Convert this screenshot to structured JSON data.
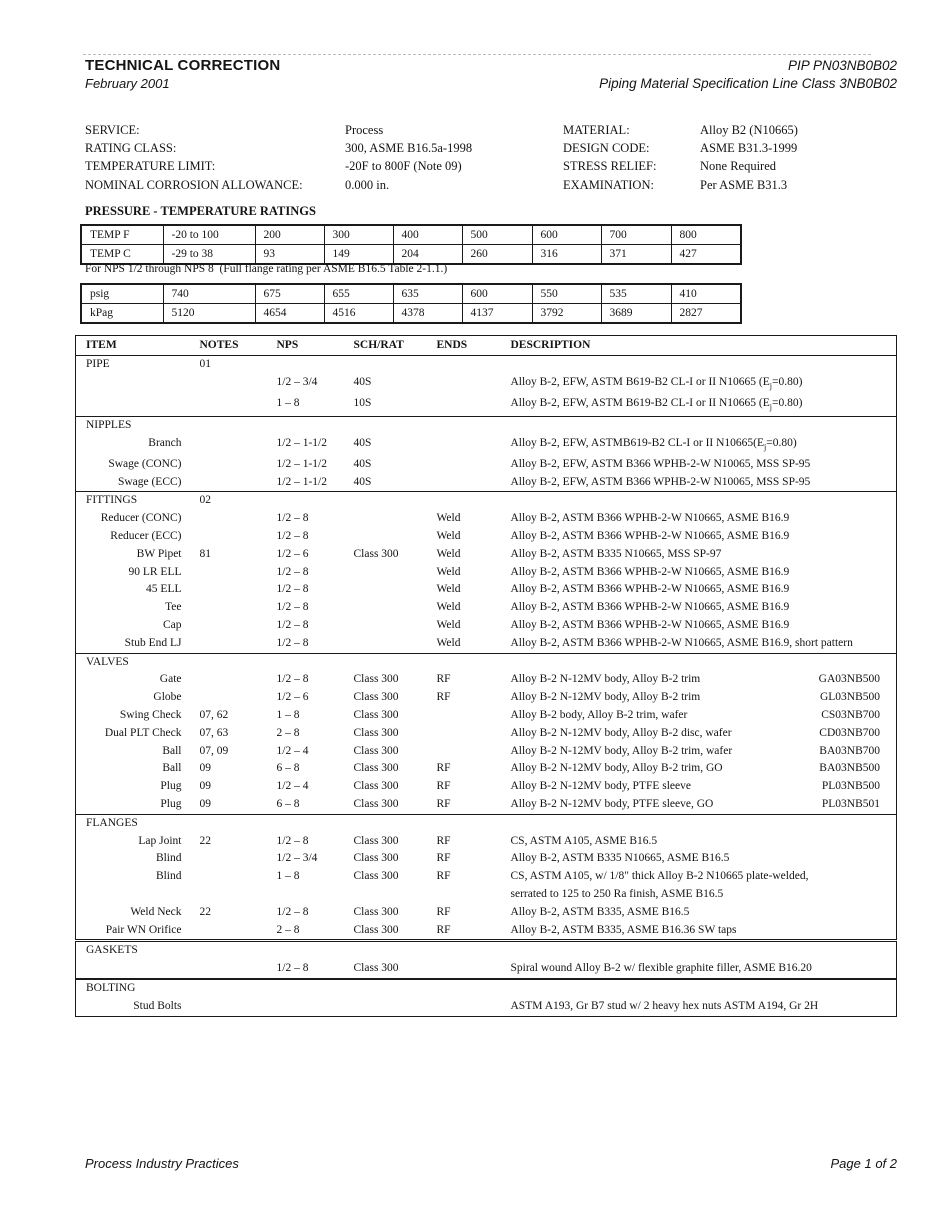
{
  "header": {
    "title": "TECHNICAL CORRECTION",
    "date": "February 2001",
    "doc_number": "PIP PN03NB0B02",
    "doc_subtitle": "Piping Material Specification Line Class 3NB0B02"
  },
  "info": {
    "left": [
      {
        "label": "SERVICE:",
        "value": "Process"
      },
      {
        "label": "RATING CLASS:",
        "value": "300, ASME B16.5a-1998"
      },
      {
        "label": "TEMPERATURE LIMIT:",
        "value": "-20F to 800F (Note 09)"
      },
      {
        "label": "NOMINAL CORROSION ALLOWANCE:",
        "value": "0.000 in."
      }
    ],
    "right": [
      {
        "label": "MATERIAL:",
        "value": "Alloy B2 (N10665)"
      },
      {
        "label": "DESIGN CODE:",
        "value": "ASME B31.3-1999"
      },
      {
        "label": "STRESS RELIEF:",
        "value": "None Required"
      },
      {
        "label": "EXAMINATION:",
        "value": "Per ASME B31.3"
      }
    ]
  },
  "pressure_section": {
    "title": "PRESSURE - TEMPERATURE RATINGS",
    "temp_table": {
      "rows": [
        {
          "label": "TEMP F",
          "values": [
            "-20 to 100",
            "200",
            "300",
            "400",
            "500",
            "600",
            "700",
            "800"
          ]
        },
        {
          "label": "TEMP C",
          "values": [
            "-29 to 38",
            "93",
            "149",
            "204",
            "260",
            "316",
            "371",
            "427"
          ]
        }
      ]
    },
    "note": "For NPS 1/2 through NPS 8  (Full flange rating per ASME B16.5 Table 2-1.1.)",
    "pressure_table": {
      "rows": [
        {
          "label": "psig",
          "values": [
            "740",
            "675",
            "655",
            "635",
            "600",
            "550",
            "535",
            "410"
          ]
        },
        {
          "label": "kPag",
          "values": [
            "5120",
            "4654",
            "4516",
            "4378",
            "4137",
            "3792",
            "3689",
            "2827"
          ]
        }
      ]
    }
  },
  "items_table": {
    "headers": [
      "ITEM",
      "NOTES",
      "NPS",
      "SCH/RAT",
      "ENDS",
      "DESCRIPTION"
    ],
    "sections": [
      {
        "title": "PIPE",
        "notes": "01",
        "rows": [
          {
            "item": "",
            "notes": "",
            "nps": "1/2 – 3/4",
            "sch": "40S",
            "ends": "",
            "desc": "Alloy B-2, EFW, ASTM B619-B2 CL-I or II N10665 (Ej=0.80)",
            "code": ""
          },
          {
            "item": "",
            "notes": "",
            "nps": "1 – 8",
            "sch": "10S",
            "ends": "",
            "desc": "Alloy B-2, EFW, ASTM B619-B2 CL-I or II N10665 (Ej=0.80)",
            "code": ""
          }
        ]
      },
      {
        "title": "NIPPLES",
        "notes": "",
        "rows": [
          {
            "item": "Branch",
            "notes": "",
            "nps": "1/2 – 1-1/2",
            "sch": "40S",
            "ends": "",
            "desc": "Alloy B-2, EFW, ASTMB619-B2 CL-I or II N10665(Ej=0.80)",
            "code": ""
          },
          {
            "item": "Swage (CONC)",
            "notes": "",
            "nps": "1/2 – 1-1/2",
            "sch": "40S",
            "ends": "",
            "desc": "Alloy B-2, EFW, ASTM B366 WPHB-2-W N10065, MSS SP-95",
            "code": ""
          },
          {
            "item": "Swage (ECC)",
            "notes": "",
            "nps": "1/2 – 1-1/2",
            "sch": "40S",
            "ends": "",
            "desc": "Alloy B-2, EFW, ASTM B366 WPHB-2-W N10065, MSS SP-95",
            "code": ""
          }
        ]
      },
      {
        "title": "FITTINGS",
        "notes": "02",
        "rows": [
          {
            "item": "Reducer (CONC)",
            "notes": "",
            "nps": "1/2 – 8",
            "sch": "",
            "ends": "Weld",
            "desc": "Alloy B-2, ASTM B366 WPHB-2-W N10665, ASME B16.9",
            "code": ""
          },
          {
            "item": "Reducer (ECC)",
            "notes": "",
            "nps": "1/2 – 8",
            "sch": "",
            "ends": "Weld",
            "desc": "Alloy B-2, ASTM B366 WPHB-2-W N10665, ASME B16.9",
            "code": ""
          },
          {
            "item": "BW Pipet",
            "notes": "81",
            "nps": "1/2 – 6",
            "sch": "Class 300",
            "ends": "Weld",
            "desc": "Alloy B-2, ASTM B335 N10665, MSS SP-97",
            "code": ""
          },
          {
            "item": "90 LR ELL",
            "notes": "",
            "nps": "1/2 – 8",
            "sch": "",
            "ends": "Weld",
            "desc": "Alloy B-2, ASTM B366 WPHB-2-W N10665, ASME B16.9",
            "code": ""
          },
          {
            "item": "45 ELL",
            "notes": "",
            "nps": "1/2 – 8",
            "sch": "",
            "ends": "Weld",
            "desc": "Alloy B-2, ASTM B366 WPHB-2-W N10665, ASME B16.9",
            "code": ""
          },
          {
            "item": "Tee",
            "notes": "",
            "nps": "1/2 – 8",
            "sch": "",
            "ends": "Weld",
            "desc": "Alloy B-2, ASTM B366 WPHB-2-W N10665, ASME B16.9",
            "code": ""
          },
          {
            "item": "Cap",
            "notes": "",
            "nps": "1/2 – 8",
            "sch": "",
            "ends": "Weld",
            "desc": "Alloy B-2, ASTM B366 WPHB-2-W N10665, ASME B16.9",
            "code": ""
          },
          {
            "item": "Stub End LJ",
            "notes": "",
            "nps": "1/2 – 8",
            "sch": "",
            "ends": "Weld",
            "desc": "Alloy B-2, ASTM B366 WPHB-2-W N10665, ASME B16.9, short pattern",
            "code": ""
          }
        ]
      },
      {
        "title": "VALVES",
        "notes": "",
        "rows": [
          {
            "item": "Gate",
            "notes": "",
            "nps": "1/2 – 8",
            "sch": "Class 300",
            "ends": "RF",
            "desc": "Alloy B-2 N-12MV body, Alloy B-2 trim",
            "code": "GA03NB500"
          },
          {
            "item": "Globe",
            "notes": "",
            "nps": "1/2 – 6",
            "sch": "Class 300",
            "ends": "RF",
            "desc": "Alloy B-2 N-12MV body, Alloy B-2 trim",
            "code": "GL03NB500"
          },
          {
            "item": "Swing Check",
            "notes": "07, 62",
            "nps": "1 – 8",
            "sch": "Class 300",
            "ends": "",
            "desc": "Alloy B-2 body, Alloy B-2 trim, wafer",
            "code": "CS03NB700"
          },
          {
            "item": "Dual PLT Check",
            "notes": "07, 63",
            "nps": "2 – 8",
            "sch": "Class 300",
            "ends": "",
            "desc": "Alloy B-2 N-12MV body, Alloy B-2 disc, wafer",
            "code": "CD03NB700"
          },
          {
            "item": "Ball",
            "notes": "07, 09",
            "nps": "1/2 – 4",
            "sch": "Class 300",
            "ends": "",
            "desc": "Alloy B-2 N-12MV body, Alloy B-2 trim, wafer",
            "code": "BA03NB700"
          },
          {
            "item": "Ball",
            "notes": "09",
            "nps": "6 – 8",
            "sch": "Class 300",
            "ends": "RF",
            "desc": "Alloy B-2 N-12MV body, Alloy B-2 trim, GO",
            "code": "BA03NB500"
          },
          {
            "item": "Plug",
            "notes": "09",
            "nps": "1/2 – 4",
            "sch": "Class 300",
            "ends": "RF",
            "desc": "Alloy B-2 N-12MV body, PTFE sleeve",
            "code": "PL03NB500"
          },
          {
            "item": "Plug",
            "notes": "09",
            "nps": "6 – 8",
            "sch": "Class 300",
            "ends": "RF",
            "desc": "Alloy B-2 N-12MV body, PTFE sleeve, GO",
            "code": "PL03NB501"
          }
        ]
      },
      {
        "title": "FLANGES",
        "notes": "",
        "rows": [
          {
            "item": "Lap Joint",
            "notes": "22",
            "nps": "1/2 – 8",
            "sch": "Class 300",
            "ends": "RF",
            "desc": "CS, ASTM A105, ASME B16.5",
            "code": ""
          },
          {
            "item": "Blind",
            "notes": "",
            "nps": "1/2 – 3/4",
            "sch": "Class 300",
            "ends": "RF",
            "desc": "Alloy B-2, ASTM B335 N10665, ASME B16.5",
            "code": ""
          },
          {
            "item": "Blind",
            "notes": "",
            "nps": "1 – 8",
            "sch": "Class 300",
            "ends": "RF",
            "desc": "CS, ASTM A105, w/ 1/8\" thick Alloy B-2 N10665 plate-welded,\nserrated to 125 to 250 Ra finish, ASME B16.5",
            "code": ""
          },
          {
            "item": "Weld Neck",
            "notes": "22",
            "nps": "1/2 – 8",
            "sch": "Class 300",
            "ends": "RF",
            "desc": "Alloy B-2, ASTM B335, ASME B16.5",
            "code": ""
          },
          {
            "item": "Pair WN Orifice",
            "notes": "",
            "nps": "2 – 8",
            "sch": "Class 300",
            "ends": "RF",
            "desc": "Alloy B-2, ASTM B335, ASME B16.36 SW taps",
            "code": ""
          }
        ]
      },
      {
        "title": "GASKETS",
        "notes": "",
        "rows": [
          {
            "item": "",
            "notes": "",
            "nps": "1/2 – 8",
            "sch": "Class 300",
            "ends": "",
            "desc": "Spiral wound Alloy B-2 w/ flexible graphite filler, ASME B16.20",
            "code": ""
          }
        ]
      },
      {
        "title": "BOLTING",
        "notes": "",
        "rows": [
          {
            "item": "Stud Bolts",
            "notes": "",
            "nps": "",
            "sch": "",
            "ends": "",
            "desc": "ASTM A193, Gr B7 stud w/ 2 heavy hex nuts ASTM A194, Gr 2H",
            "code": ""
          }
        ]
      }
    ]
  },
  "footer": {
    "left": "Process Industry Practices",
    "right": "Page 1 of 2"
  }
}
